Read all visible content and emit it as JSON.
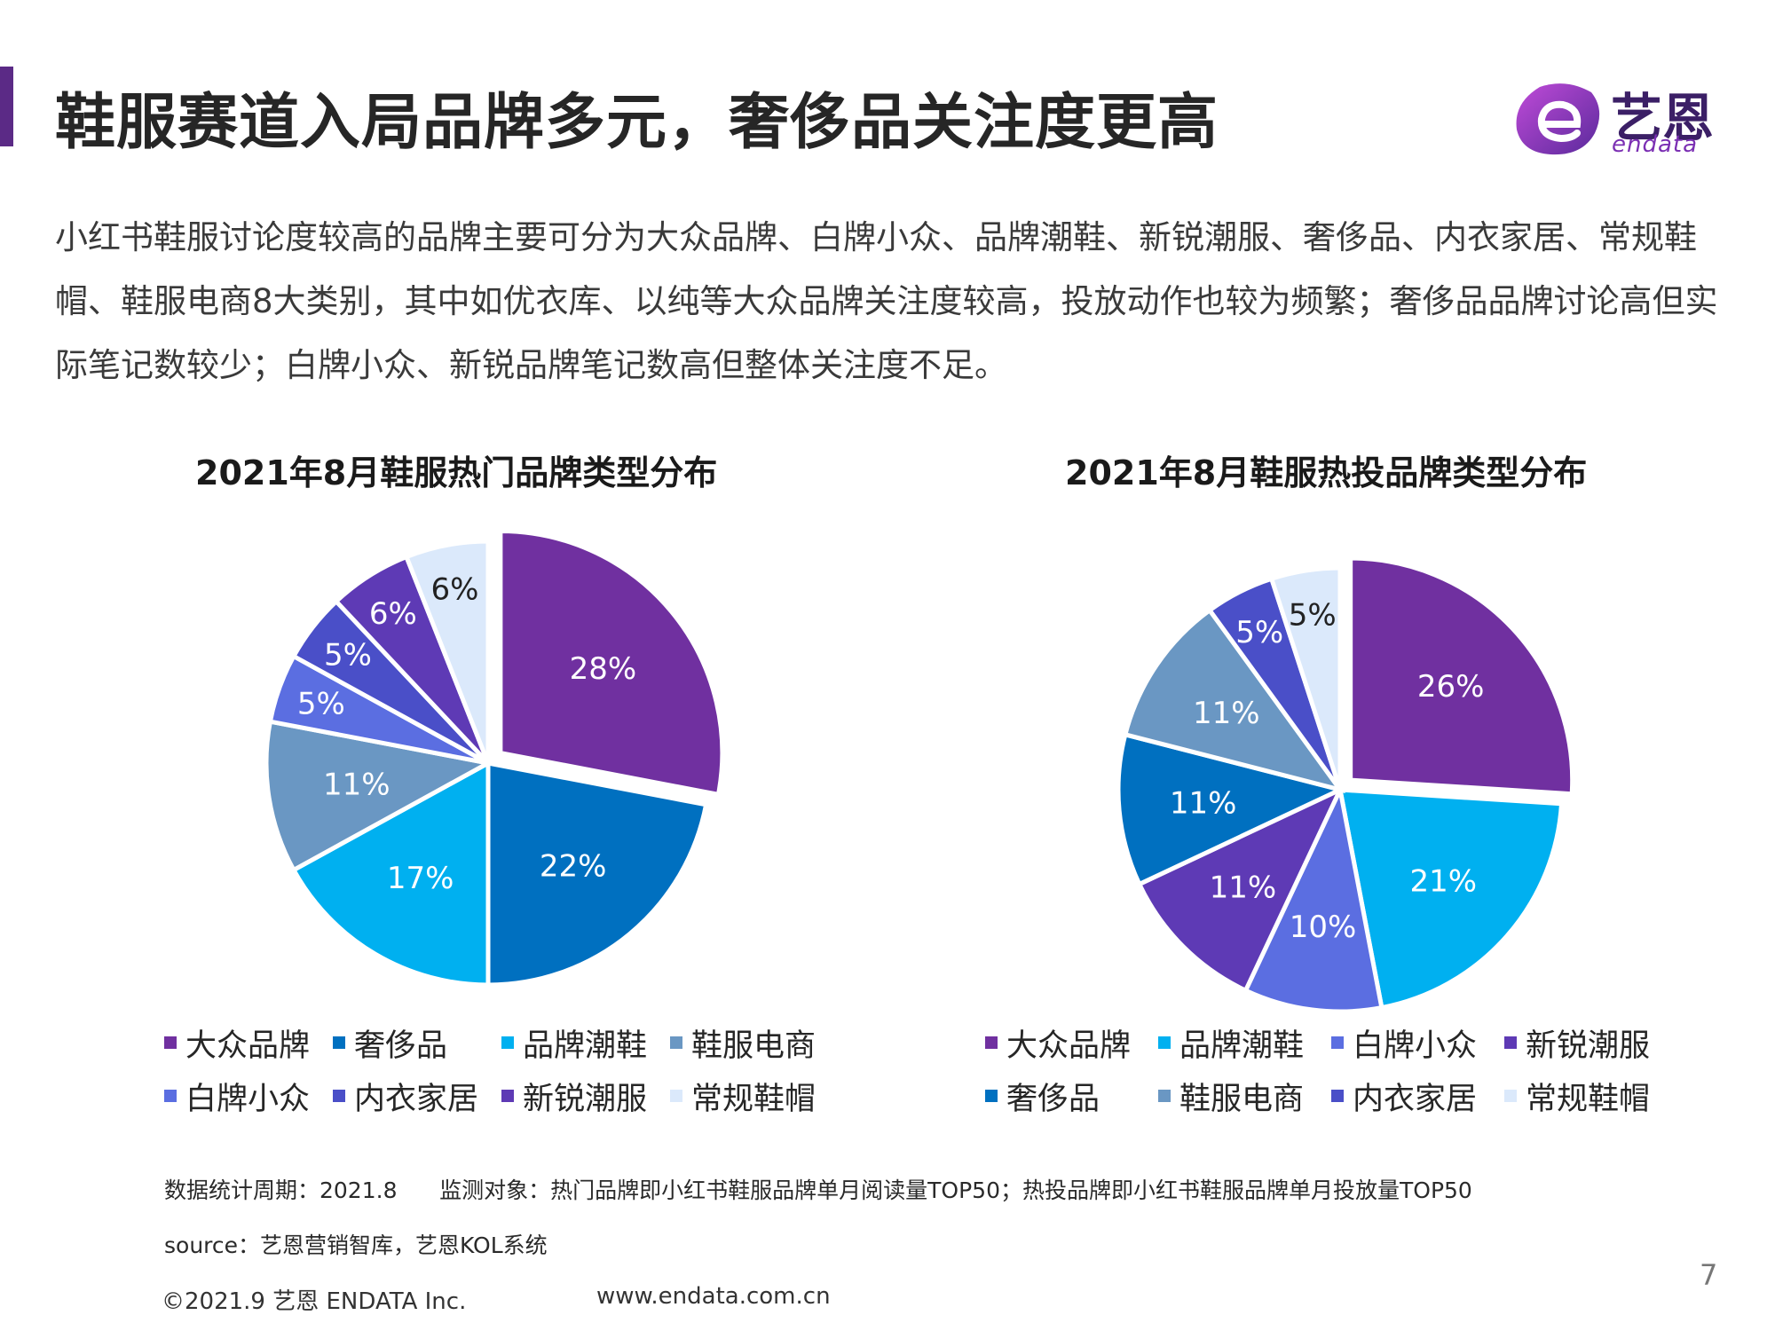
{
  "header": {
    "title": "鞋服赛道入局品牌多元，奢侈品关注度更高",
    "logo_text": "艺恩",
    "logo_sub": "endata"
  },
  "intro": "小红书鞋服讨论度较高的品牌主要可分为大众品牌、白牌小众、品牌潮鞋、新锐潮服、奢侈品、内衣家居、常规鞋帽、鞋服电商8大类别，其中如优衣库、以纯等大众品牌关注度较高，投放动作也较为频繁；奢侈品品牌讨论高但实际笔记数较少；白牌小众、新锐品牌笔记数高但整体关注度不足。",
  "colors": {
    "大众品牌": "#7030a0",
    "奢侈品": "#0070c0",
    "品牌潮鞋": "#00b0f0",
    "鞋服电商": "#6a97c3",
    "白牌小众": "#5b6ee1",
    "内衣家居": "#4a4fc8",
    "新锐潮服": "#5e3ab5",
    "常规鞋帽": "#dbe9fb"
  },
  "chart_data": [
    {
      "type": "pie",
      "title": "2021年8月鞋服热门品牌类型分布",
      "slices": [
        {
          "label": "大众品牌",
          "value": 28,
          "display": "28%"
        },
        {
          "label": "奢侈品",
          "value": 22,
          "display": "22%"
        },
        {
          "label": "品牌潮鞋",
          "value": 17,
          "display": "17%"
        },
        {
          "label": "鞋服电商",
          "value": 11,
          "display": "11%"
        },
        {
          "label": "白牌小众",
          "value": 5,
          "display": "5%"
        },
        {
          "label": "内衣家居",
          "value": 5,
          "display": "5%"
        },
        {
          "label": "新锐潮服",
          "value": 6,
          "display": "6%"
        },
        {
          "label": "常规鞋帽",
          "value": 6,
          "display": "6%"
        }
      ],
      "legend": [
        "大众品牌",
        "奢侈品",
        "品牌潮鞋",
        "鞋服电商",
        "白牌小众",
        "内衣家居",
        "新锐潮服",
        "常规鞋帽"
      ],
      "legend_position": "bottom"
    },
    {
      "type": "pie",
      "title": "2021年8月鞋服热投品牌类型分布",
      "slices": [
        {
          "label": "大众品牌",
          "value": 26,
          "display": "26%"
        },
        {
          "label": "品牌潮鞋",
          "value": 21,
          "display": "21%"
        },
        {
          "label": "白牌小众",
          "value": 10,
          "display": "10%"
        },
        {
          "label": "新锐潮服",
          "value": 11,
          "display": "11%"
        },
        {
          "label": "奢侈品",
          "value": 11,
          "display": "11%"
        },
        {
          "label": "鞋服电商",
          "value": 11,
          "display": "11%"
        },
        {
          "label": "内衣家居",
          "value": 5,
          "display": "5%"
        },
        {
          "label": "常规鞋帽",
          "value": 5,
          "display": "5%"
        }
      ],
      "legend": [
        "大众品牌",
        "品牌潮鞋",
        "白牌小众",
        "新锐潮服",
        "奢侈品",
        "鞋服电商",
        "内衣家居",
        "常规鞋帽"
      ],
      "legend_position": "bottom"
    }
  ],
  "notes": {
    "line1": "数据统计周期：2021.8      监测对象：热门品牌即小红书鞋服品牌单月阅读量TOP50；热投品牌即小红书鞋服品牌单月投放量TOP50",
    "line2": "source：艺恩营销智库，艺恩KOL系统"
  },
  "footer": {
    "copyright": "©2021.9 艺恩 ENDATA Inc.",
    "website": "www.endata.com.cn",
    "page_number": "7"
  }
}
